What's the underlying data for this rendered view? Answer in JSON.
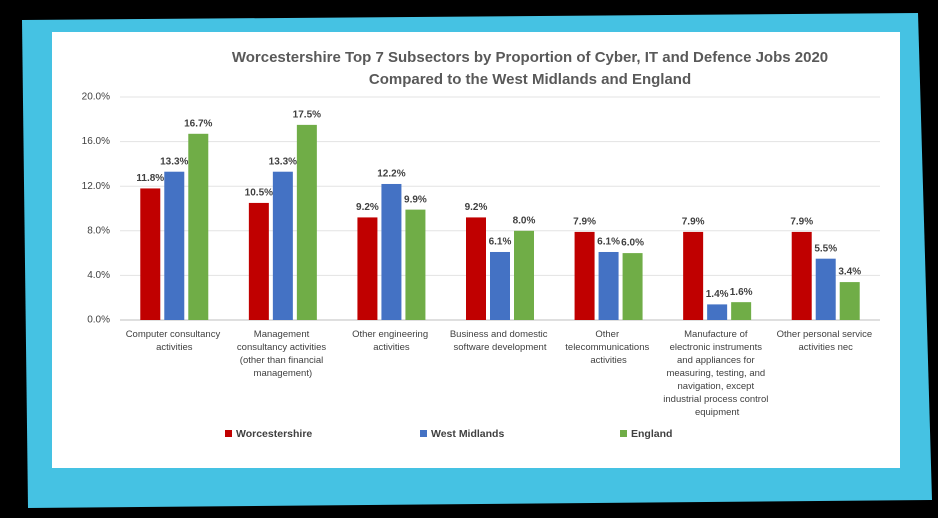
{
  "chart_data": {
    "type": "bar",
    "title": [
      "Worcestershire Top 7 Subsectors by Proportion of Cyber, IT and Defence Jobs 2020",
      "Compared to the West Midlands and England"
    ],
    "categories": [
      "Computer consultancy activities",
      "Management consultancy activities (other than financial management)",
      "Other engineering activities",
      "Business and domestic software development",
      "Other telecommunications activities",
      "Manufacture of electronic instruments and appliances for measuring, testing, and navigation, except industrial process control equipment",
      "Other personal service activities nec"
    ],
    "series": [
      {
        "name": "Worcestershire",
        "color": "#c00000",
        "values": [
          11.8,
          10.5,
          9.2,
          9.2,
          7.9,
          7.9,
          7.9
        ],
        "value_labels": [
          "11.8%",
          "10.5%",
          "9.2%",
          "9.2%",
          "7.9%",
          "7.9%",
          "7.9%"
        ]
      },
      {
        "name": "West Midlands",
        "color": "#4472c4",
        "values": [
          13.3,
          13.3,
          12.2,
          6.1,
          6.1,
          1.4,
          5.5
        ],
        "value_labels": [
          "13.3%",
          "13.3%",
          "12.2%",
          "6.1%",
          "6.1%",
          "1.4%",
          "5.5%"
        ]
      },
      {
        "name": "England",
        "color": "#70ad47",
        "values": [
          16.7,
          17.5,
          9.9,
          8.0,
          6.0,
          1.6,
          3.4
        ],
        "value_labels": [
          "16.7%",
          "17.5%",
          "9.9%",
          "8.0%",
          "6.0%",
          "1.6%",
          "3.4%"
        ]
      }
    ],
    "ylim": [
      0,
      20
    ],
    "yticks": [
      {
        "value": 0,
        "label": "0.0%"
      },
      {
        "value": 4,
        "label": "4.0%"
      },
      {
        "value": 8,
        "label": "8.0%"
      },
      {
        "value": 12,
        "label": "12.0%"
      },
      {
        "value": 16,
        "label": "16.0%"
      },
      {
        "value": 20,
        "label": "20.0%"
      }
    ],
    "grid": true,
    "legend": "bottom"
  }
}
